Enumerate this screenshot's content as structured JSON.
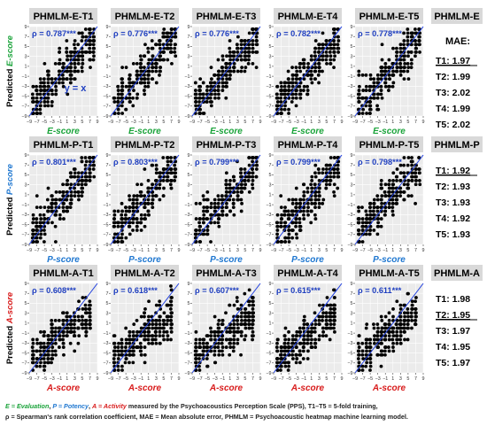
{
  "chart_data": {
    "type": "scatter",
    "x_ticks": [
      "−9",
      "−7",
      "−5",
      "−3",
      "−1",
      "1",
      "3",
      "5",
      "7",
      "9"
    ],
    "y_ticks": [
      "9",
      "7",
      "5",
      "3",
      "1",
      "−1",
      "−3",
      "−5",
      "−7",
      "−9"
    ],
    "xlim": [
      -9,
      9
    ],
    "ylim": [
      -9,
      9
    ],
    "grid": true,
    "reference_line": "y = x",
    "reference_line_label": "y = x",
    "rows": [
      {
        "dimension": "E",
        "xlabel": "E-score",
        "ylabel_prefix": "Predicted ",
        "ylabel_main": "E-score",
        "color": "#1aa33a",
        "header": "PHMLM-E",
        "mae_title": "MAE:",
        "panels": [
          {
            "title": "PHMLM-E-T1",
            "rho": "ρ = 0.787***"
          },
          {
            "title": "PHMLM-E-T2",
            "rho": "ρ = 0.776***"
          },
          {
            "title": "PHMLM-E-T3",
            "rho": "ρ = 0.776***"
          },
          {
            "title": "PHMLM-E-T4",
            "rho": "ρ = 0.782***"
          },
          {
            "title": "PHMLM-E-T5",
            "rho": "ρ = 0.778***"
          }
        ],
        "mae": [
          {
            "label": "T1: 1.97",
            "best": true
          },
          {
            "label": "T2: 1.99",
            "best": false
          },
          {
            "label": "T3: 2.02",
            "best": false
          },
          {
            "label": "T4: 1.99",
            "best": false
          },
          {
            "label": "T5: 2.02",
            "best": false
          }
        ]
      },
      {
        "dimension": "P",
        "xlabel": "P-score",
        "ylabel_prefix": "Predicted ",
        "ylabel_main": "P-score",
        "color": "#1f77d0",
        "header": "PHMLM-P",
        "mae_title": "",
        "panels": [
          {
            "title": "PHMLM-P-T1",
            "rho": "ρ = 0.801***"
          },
          {
            "title": "PHMLM-P-T2",
            "rho": "ρ = 0.803***"
          },
          {
            "title": "PHMLM-P-T3",
            "rho": "ρ = 0.799***"
          },
          {
            "title": "PHMLM-P-T4",
            "rho": "ρ = 0.799***"
          },
          {
            "title": "PHMLM-P-T5",
            "rho": "ρ = 0.798***"
          }
        ],
        "mae": [
          {
            "label": "T1: 1.92",
            "best": true
          },
          {
            "label": "T2: 1.93",
            "best": false
          },
          {
            "label": "T3: 1.93",
            "best": false
          },
          {
            "label": "T4: 1.92",
            "best": false
          },
          {
            "label": "T5: 1.93",
            "best": false
          }
        ]
      },
      {
        "dimension": "A",
        "xlabel": "A-score",
        "ylabel_prefix": "Predicted ",
        "ylabel_main": "A-score",
        "color": "#d81b1b",
        "header": "PHMLM-A",
        "mae_title": "",
        "panels": [
          {
            "title": "PHMLM-A-T1",
            "rho": "ρ = 0.608***"
          },
          {
            "title": "PHMLM-A-T2",
            "rho": "ρ = 0.618***"
          },
          {
            "title": "PHMLM-A-T3",
            "rho": "ρ = 0.607***"
          },
          {
            "title": "PHMLM-A-T4",
            "rho": "ρ = 0.615***"
          },
          {
            "title": "PHMLM-A-T5",
            "rho": "ρ = 0.611***"
          }
        ],
        "mae": [
          {
            "label": "T1: 1.98",
            "best": false
          },
          {
            "label": "T2: 1.95",
            "best": true
          },
          {
            "label": "T3: 1.97",
            "best": false
          },
          {
            "label": "T4: 1.95",
            "best": false
          },
          {
            "label": "T5: 1.97",
            "best": false
          }
        ]
      }
    ]
  },
  "caption": {
    "e_part": "E = Evaluation",
    "sep1": ", ",
    "p_part": "P = Potency",
    "sep2": ", ",
    "a_part": "A = Activity",
    "line1_rest": " measured by the Psychoacoustics Perception Scale (PPS), T1–T5 = 5-fold training,",
    "line2": "ρ = Spearman's rank correlation coefficient, MAE = Mean absolute error, PHMLM = Psychoacoustic heatmap machine learning model."
  }
}
